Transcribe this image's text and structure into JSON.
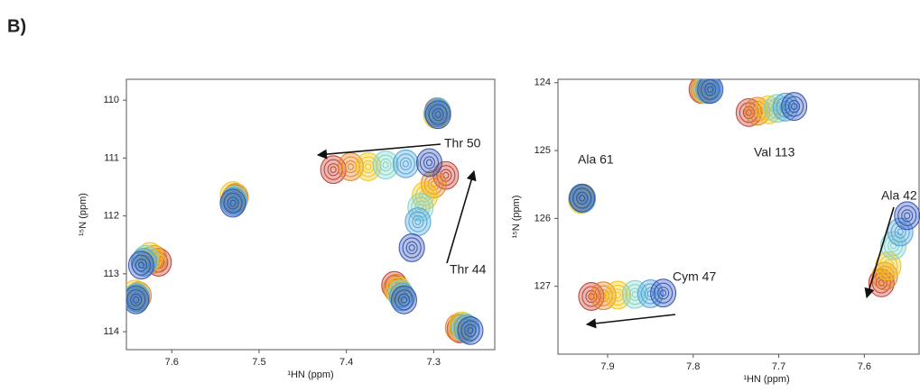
{
  "panel_label": "B)",
  "chart_data": [
    {
      "type": "scatter",
      "xlabel": "¹HN (ppm)",
      "ylabel": "¹⁵N (ppm)",
      "xlim": [
        7.652,
        7.23
      ],
      "ylim": [
        109.64,
        114.31
      ],
      "xticks": [
        7.6,
        7.5,
        7.4,
        7.3
      ],
      "yticks": [
        110,
        111,
        112,
        113,
        114
      ],
      "annotations": [
        "Thr 50",
        "Thr 44"
      ],
      "series": [
        {
          "color": "#c0392b",
          "x": [
            7.415,
            7.286,
            7.296,
            7.528,
            7.615,
            7.64,
            7.345,
            7.27
          ],
          "y": [
            111.2,
            111.3,
            110.2,
            111.7,
            112.8,
            113.4,
            113.2,
            113.95
          ]
        },
        {
          "color": "#e67e22",
          "x": [
            7.395,
            7.3,
            7.296,
            7.527,
            7.62,
            7.638,
            7.343,
            7.272
          ],
          "y": [
            111.15,
            111.45,
            110.22,
            111.68,
            112.75,
            113.38,
            113.25,
            113.93
          ]
        },
        {
          "color": "#f1c40f",
          "x": [
            7.375,
            7.31,
            7.297,
            7.53,
            7.625,
            7.642,
            7.34,
            7.268
          ],
          "y": [
            111.15,
            111.65,
            110.25,
            111.65,
            112.7,
            113.35,
            113.3,
            113.9
          ]
        },
        {
          "color": "#7fd3c8",
          "x": [
            7.355,
            7.315,
            7.295,
            7.528,
            7.63,
            7.64,
            7.338,
            7.265
          ],
          "y": [
            111.12,
            111.85,
            110.2,
            111.72,
            112.75,
            113.4,
            113.35,
            113.92
          ]
        },
        {
          "color": "#4fa3d9",
          "x": [
            7.332,
            7.318,
            7.296,
            7.529,
            7.632,
            7.64,
            7.336,
            7.262
          ],
          "y": [
            111.1,
            112.1,
            110.22,
            111.75,
            112.8,
            113.42,
            113.4,
            113.95
          ]
        },
        {
          "color": "#3050b0",
          "x": [
            7.305,
            7.325,
            7.295,
            7.53,
            7.635,
            7.641,
            7.334,
            7.258
          ],
          "y": [
            111.08,
            112.55,
            110.25,
            111.78,
            112.85,
            113.45,
            113.45,
            113.98
          ]
        }
      ]
    },
    {
      "type": "scatter",
      "xlabel": "¹HN (ppm)",
      "ylabel": "¹⁵N (ppm)",
      "xlim": [
        7.958,
        7.536
      ],
      "ylim": [
        123.95,
        128
      ],
      "xticks": [
        7.9,
        7.8,
        7.7,
        7.6
      ],
      "yticks": [
        124,
        125,
        126,
        127
      ],
      "annotations": [
        "Ala 61",
        "Val 113",
        "Ala 42",
        "Cym 47"
      ],
      "series": [
        {
          "color": "#c0392b",
          "x": [
            7.93,
            7.735,
            7.919,
            7.58,
            7.79
          ],
          "y": [
            125.7,
            124.44,
            127.15,
            126.95,
            124.1
          ]
        },
        {
          "color": "#e67e22",
          "x": [
            7.929,
            7.725,
            7.905,
            7.576,
            7.788
          ],
          "y": [
            125.7,
            124.42,
            127.14,
            126.85,
            124.1
          ]
        },
        {
          "color": "#f1c40f",
          "x": [
            7.931,
            7.712,
            7.888,
            7.572,
            7.786
          ],
          "y": [
            125.72,
            124.4,
            127.13,
            126.7,
            124.1
          ]
        },
        {
          "color": "#7fd3c8",
          "x": [
            7.93,
            7.702,
            7.868,
            7.566,
            7.784
          ],
          "y": [
            125.7,
            124.38,
            127.12,
            126.4,
            124.1
          ]
        },
        {
          "color": "#4fa3d9",
          "x": [
            7.929,
            7.692,
            7.85,
            7.558,
            7.782
          ],
          "y": [
            125.71,
            124.36,
            127.11,
            126.2,
            124.1
          ]
        },
        {
          "color": "#3050b0",
          "x": [
            7.93,
            7.682,
            7.835,
            7.55,
            7.78
          ],
          "y": [
            125.7,
            124.35,
            127.1,
            125.96,
            124.1
          ]
        }
      ]
    }
  ]
}
